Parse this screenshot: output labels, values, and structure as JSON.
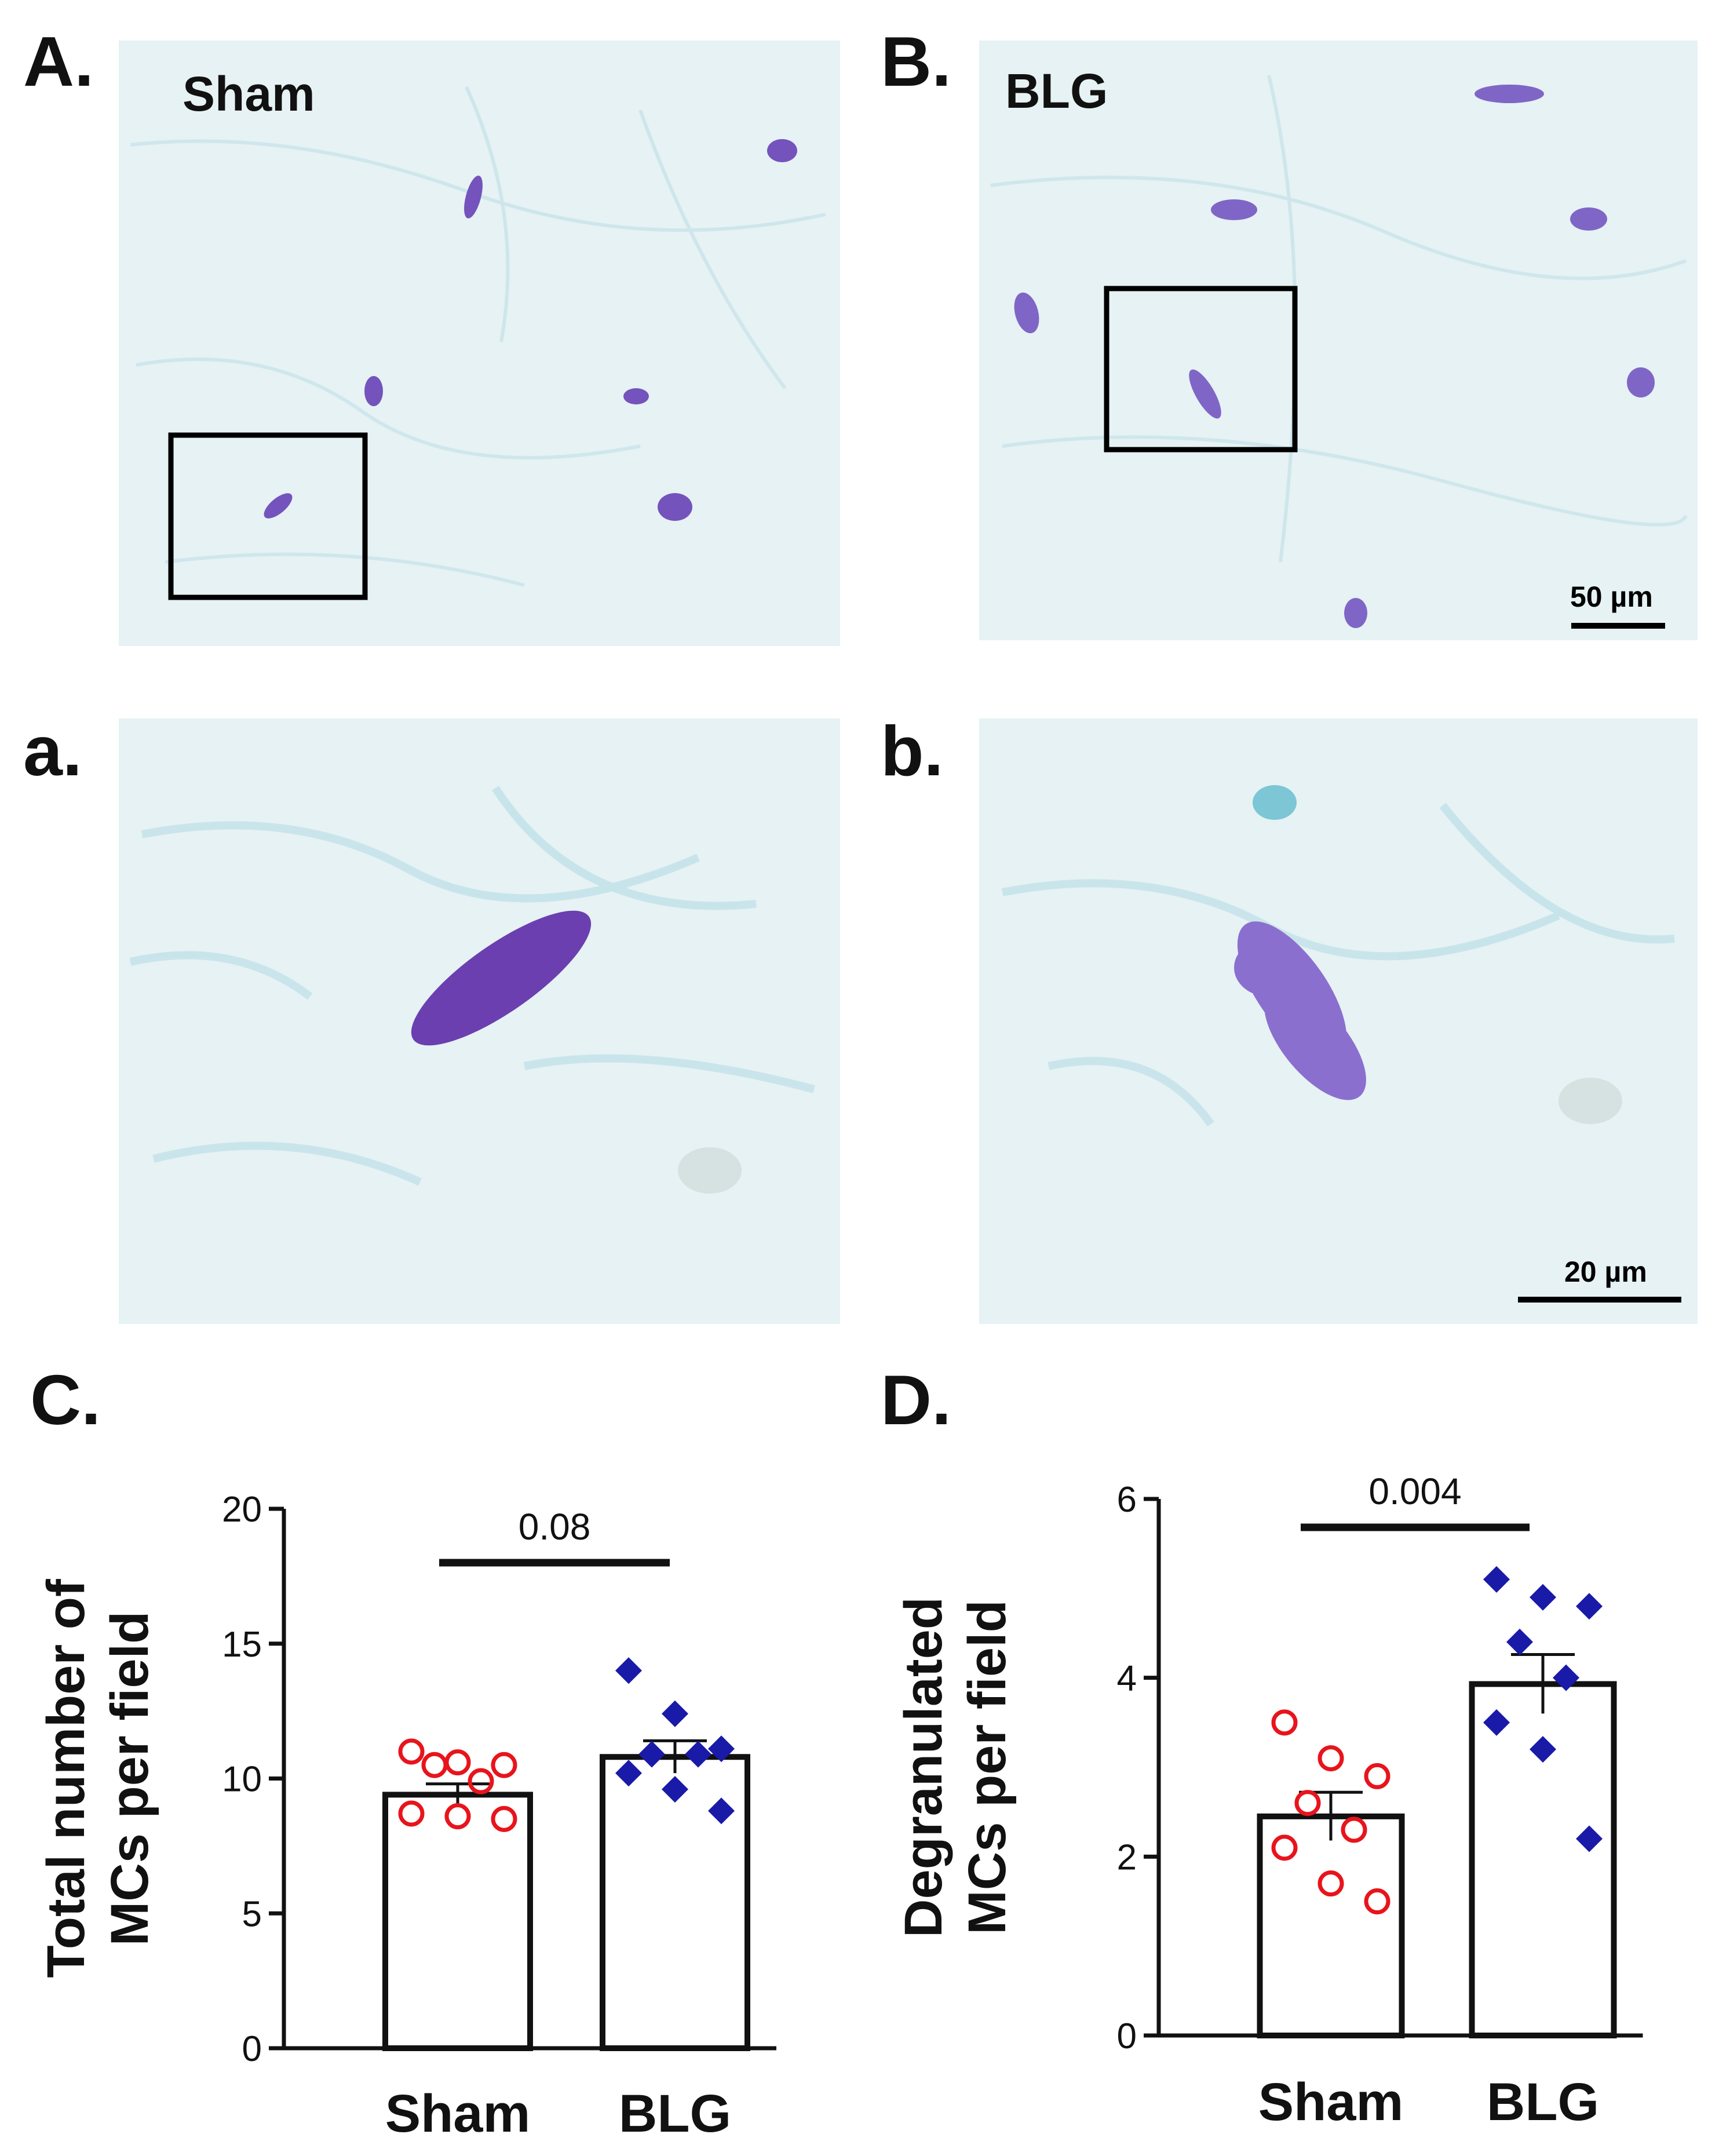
{
  "panels": {
    "A": {
      "label": "A.",
      "image_label": "Sham"
    },
    "B": {
      "label": "B.",
      "image_label": "BLG",
      "scale_bar": "50 µm"
    },
    "a": {
      "label": "a."
    },
    "b": {
      "label": "b.",
      "scale_bar": "20 µm"
    },
    "C": {
      "label": "C."
    },
    "D": {
      "label": "D."
    }
  },
  "colors": {
    "sham": "#e8141c",
    "blg": "#1a1aa8",
    "tissue": "#e6f2f4",
    "cell": "#6f4fb8"
  },
  "chart_data": [
    {
      "type": "bar",
      "categories": [
        "Sham",
        "BLG"
      ],
      "values": [
        9.4,
        10.8
      ],
      "sem": [
        0.4,
        0.6
      ],
      "ylabel_lines": [
        "Total number of",
        "MCs per field"
      ],
      "ylim": [
        0,
        20
      ],
      "yticks": [
        0,
        5,
        10,
        15,
        20
      ],
      "ytick_labels": [
        "0",
        "5",
        "10",
        "15",
        "20"
      ],
      "points": {
        "Sham": [
          11.0,
          10.6,
          10.5,
          10.5,
          9.9,
          8.7,
          8.6,
          8.5
        ],
        "BLG": [
          14.0,
          12.4,
          11.1,
          10.9,
          10.9,
          10.2,
          9.6,
          8.8
        ]
      },
      "significance": {
        "label": "0.08",
        "between": [
          "Sham",
          "BLG"
        ]
      },
      "markers": {
        "Sham": "open-circle",
        "BLG": "filled-diamond"
      }
    },
    {
      "type": "bar",
      "categories": [
        "Sham",
        "BLG"
      ],
      "values": [
        2.45,
        3.93
      ],
      "sem": [
        0.27,
        0.33
      ],
      "ylabel_lines": [
        "Degranulated",
        "MCs per field"
      ],
      "ylim": [
        0,
        6
      ],
      "yticks": [
        0,
        2,
        4,
        6
      ],
      "ytick_labels": [
        "0",
        "2",
        "4",
        "6"
      ],
      "points": {
        "Sham": [
          3.5,
          3.1,
          2.9,
          2.6,
          2.3,
          2.1,
          1.7,
          1.5
        ],
        "BLG": [
          5.1,
          4.9,
          4.8,
          4.4,
          4.0,
          3.5,
          3.2,
          2.2
        ]
      },
      "significance": {
        "label": "0.004",
        "between": [
          "Sham",
          "BLG"
        ]
      },
      "markers": {
        "Sham": "open-circle",
        "BLG": "filled-diamond"
      }
    }
  ]
}
